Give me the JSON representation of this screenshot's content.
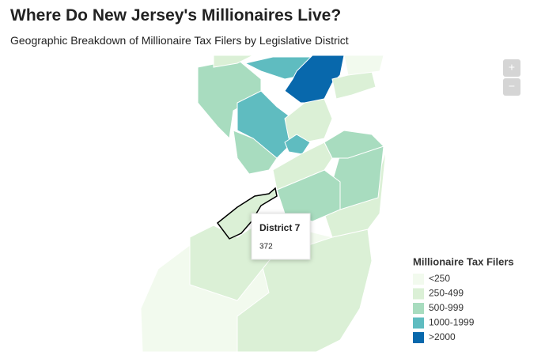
{
  "header": {
    "title": "Where Do New Jersey's Millionaires Live?",
    "subtitle": "Geographic Breakdown of Millionaire Tax Filers by Legislative District"
  },
  "zoom": {
    "in": "+",
    "out": "−"
  },
  "tooltip": {
    "title": "District 7",
    "value": 372
  },
  "legend": {
    "title": "Millionaire Tax Filers",
    "items": [
      {
        "label": "<250",
        "color": "#f2faee"
      },
      {
        "label": "250-499",
        "color": "#dbf0d6"
      },
      {
        "label": "500-999",
        "color": "#a8dcbf"
      },
      {
        "label": "1000-1999",
        "color": "#5fbcc0"
      },
      {
        "label": ">2000",
        "color": "#0868ac"
      }
    ]
  }
}
